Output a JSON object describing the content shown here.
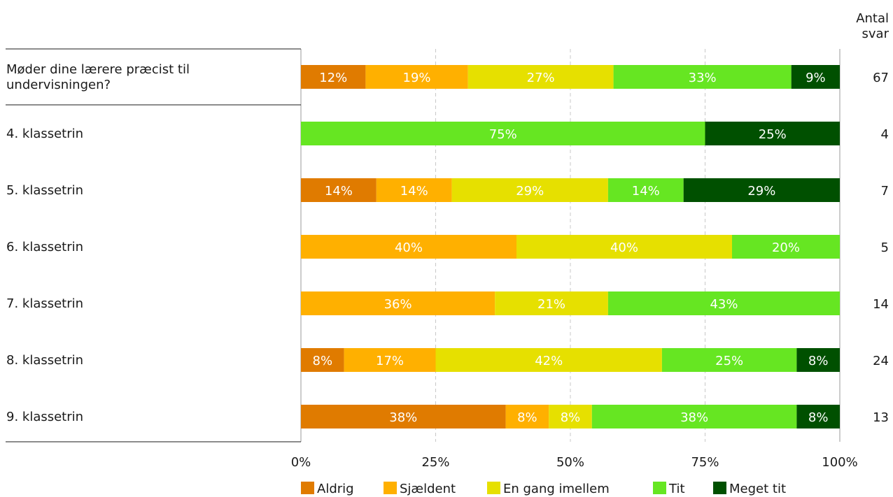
{
  "chart_data": {
    "type": "bar",
    "stacked": true,
    "orientation": "horizontal",
    "count_header": [
      "Antal",
      "svar"
    ],
    "categories": [
      "Møder dine lærere præcist til undervisningen?",
      "4. klassetrin",
      "5. klassetrin",
      "6. klassetrin",
      "7. klassetrin",
      "8. klassetrin",
      "9. klassetrin"
    ],
    "category_lines": [
      [
        "Møder dine lærere præcist til",
        "undervisningen?"
      ],
      [
        "4. klassetrin"
      ],
      [
        "5. klassetrin"
      ],
      [
        "6. klassetrin"
      ],
      [
        "7. klassetrin"
      ],
      [
        "8. klassetrin"
      ],
      [
        "9. klassetrin"
      ]
    ],
    "counts": [
      "67",
      "4",
      "7",
      "5",
      "14",
      "24",
      "13"
    ],
    "series": [
      {
        "name": "Aldrig",
        "color": "#e07b00",
        "values": [
          12,
          0,
          14,
          0,
          0,
          8,
          38
        ]
      },
      {
        "name": "Sjældent",
        "color": "#ffb000",
        "values": [
          19,
          0,
          14,
          40,
          36,
          17,
          8
        ]
      },
      {
        "name": "En gang imellem",
        "color": "#e6e000",
        "values": [
          27,
          0,
          29,
          40,
          21,
          42,
          8
        ]
      },
      {
        "name": "Tit",
        "color": "#66e622",
        "values": [
          33,
          75,
          14,
          20,
          43,
          25,
          38
        ]
      },
      {
        "name": "Meget tit",
        "color": "#005000",
        "values": [
          9,
          25,
          29,
          0,
          0,
          8,
          8
        ]
      }
    ],
    "xlim": [
      0,
      100
    ],
    "x_ticks": [
      "0%",
      "25%",
      "50%",
      "75%",
      "100%"
    ],
    "grid": true,
    "legend_position": "bottom"
  }
}
